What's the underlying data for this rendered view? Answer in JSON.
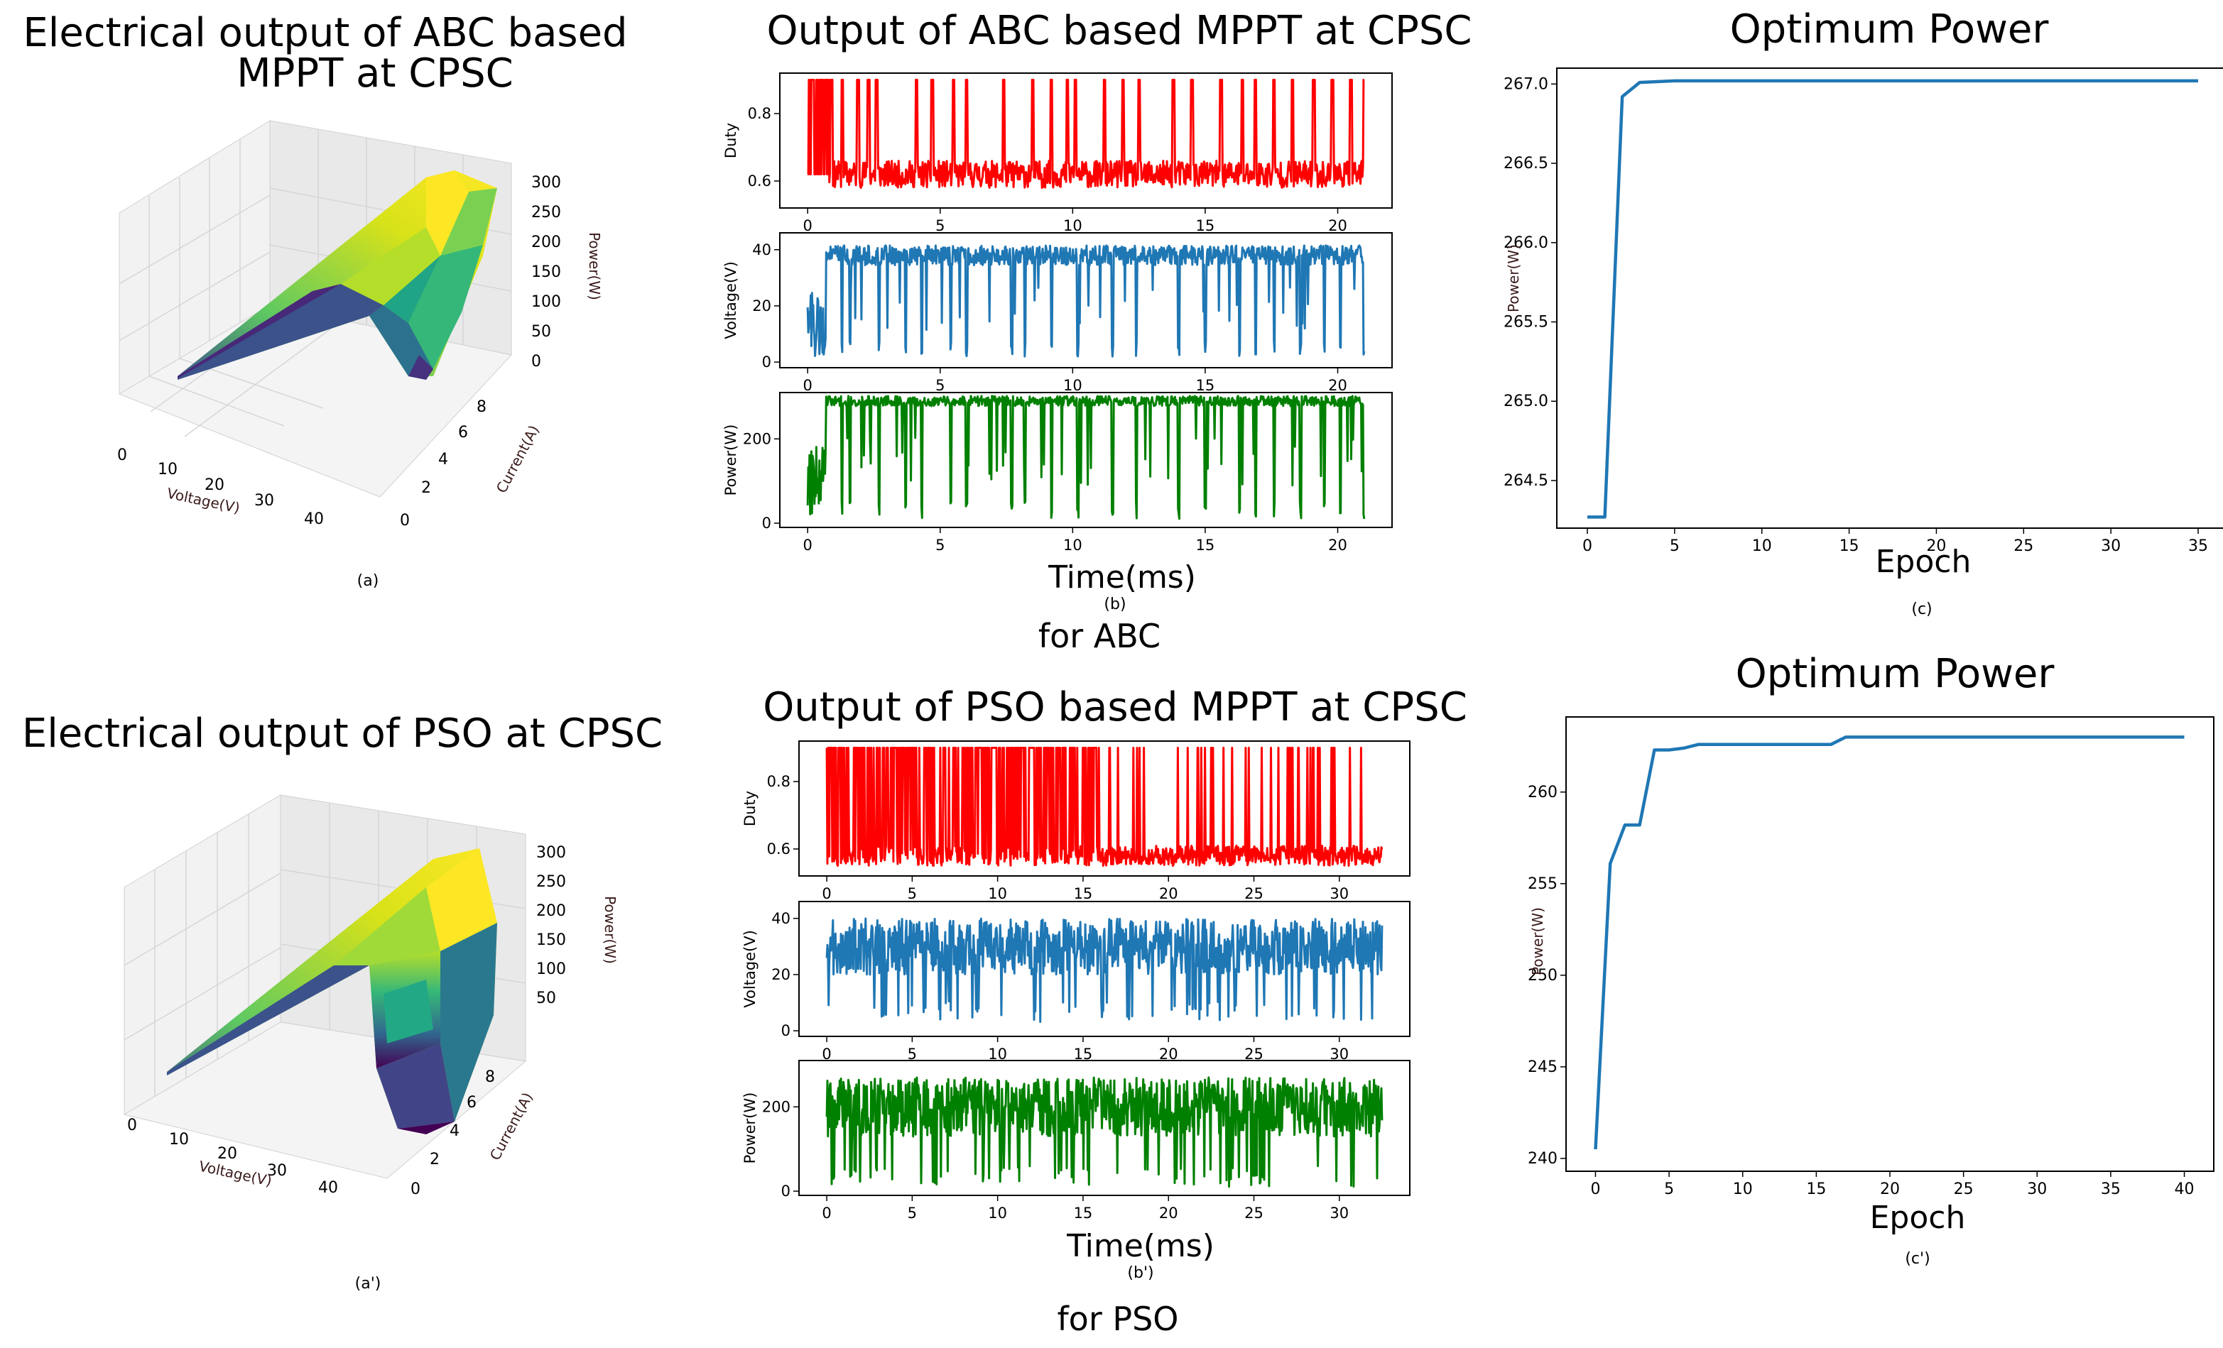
{
  "figure_labels": {
    "caption_a": "(a)",
    "caption_b": "(b)",
    "caption_c": "(c)",
    "caption_a2": "(a')",
    "caption_b2": "(b')",
    "caption_c2": "(c')",
    "group_abc": "for ABC",
    "group_pso": "for PSO"
  },
  "panel_a": {
    "title_line1": "Electrical output of ABC based",
    "title_line2": "MPPT at CPSC",
    "xlabel": "Voltage(V)",
    "ylabel": "Current(A)",
    "zlabel": "Power(W)",
    "xticks": [
      "0",
      "10",
      "20",
      "30",
      "40"
    ],
    "yticks": [
      "0",
      "2",
      "4",
      "6",
      "8"
    ],
    "zticks": [
      "0",
      "50",
      "100",
      "150",
      "200",
      "250",
      "300"
    ]
  },
  "panel_a2": {
    "title": "Electrical output of PSO at CPSC",
    "xlabel": "Voltage(V)",
    "ylabel": "Current(A)",
    "zlabel": "Power(W)",
    "xticks": [
      "0",
      "10",
      "20",
      "30",
      "40"
    ],
    "yticks": [
      "0",
      "2",
      "4",
      "6",
      "8"
    ],
    "zticks": [
      "50",
      "100",
      "150",
      "200",
      "250",
      "300"
    ]
  },
  "panel_b": {
    "title": "Output of ABC based MPPT at CPSC",
    "xlabel": "Time(ms)",
    "xticks": [
      "0",
      "5",
      "10",
      "15",
      "20"
    ],
    "subplots": [
      {
        "ylabel": "Duty",
        "yticks": [
          "0.6",
          "0.8"
        ]
      },
      {
        "ylabel": "Voltage(V)",
        "yticks": [
          "0",
          "20",
          "40"
        ]
      },
      {
        "ylabel": "Power(W)",
        "yticks": [
          "0",
          "200"
        ]
      }
    ]
  },
  "panel_b2": {
    "title": "Output of PSO based MPPT at CPSC",
    "xlabel": "Time(ms)",
    "xticks": [
      "0",
      "5",
      "10",
      "15",
      "20",
      "25",
      "30"
    ],
    "subplots": [
      {
        "ylabel": "Duty",
        "yticks": [
          "0.6",
          "0.8"
        ]
      },
      {
        "ylabel": "Voltage(V)",
        "yticks": [
          "0",
          "20",
          "40"
        ]
      },
      {
        "ylabel": "Power(W)",
        "yticks": [
          "0",
          "200"
        ]
      }
    ]
  },
  "panel_c": {
    "title": "Optimum Power",
    "xlabel": "Epoch",
    "ylabel": "Power(W)",
    "xticks": [
      "0",
      "5",
      "10",
      "15",
      "20",
      "25",
      "30",
      "35"
    ],
    "yticks": [
      "264.5",
      "265.0",
      "265.5",
      "266.0",
      "266.5",
      "267.0"
    ]
  },
  "panel_c2": {
    "title": "Optimum Power",
    "xlabel": "Epoch",
    "ylabel": "Power(W)",
    "xticks": [
      "0",
      "5",
      "10",
      "15",
      "20",
      "25",
      "30",
      "35",
      "40"
    ],
    "yticks": [
      "240",
      "245",
      "250",
      "255",
      "260"
    ]
  },
  "chart_data": [
    {
      "id": "a",
      "type": "surface3d",
      "title": "Electrical output of ABC based MPPT at CPSC",
      "xlabel": "Voltage(V)",
      "ylabel": "Current(A)",
      "zlabel": "Power(W)",
      "xlim": [
        0,
        45
      ],
      "ylim": [
        0,
        9
      ],
      "zlim": [
        0,
        300
      ],
      "peak_power": 300,
      "colormap": "viridis"
    },
    {
      "id": "a2",
      "type": "surface3d",
      "title": "Electrical output of PSO at CPSC",
      "xlabel": "Voltage(V)",
      "ylabel": "Current(A)",
      "zlabel": "Power(W)",
      "xlim": [
        0,
        45
      ],
      "ylim": [
        0,
        9
      ],
      "zlim": [
        0,
        300
      ],
      "peak_power": 300,
      "colormap": "viridis"
    },
    {
      "id": "b",
      "type": "line",
      "title": "Output of ABC based MPPT at CPSC",
      "xlabel": "Time(ms)",
      "xlim": [
        0,
        21
      ],
      "series": [
        {
          "name": "Duty",
          "ylabel": "Duty",
          "color": "#ff0000",
          "ylim": [
            0.52,
            0.92
          ],
          "base": 0.62,
          "noise": 0.04,
          "high": 0.9,
          "spikes": [
            0.0,
            0.2,
            0.4,
            0.9,
            1.3,
            1.9,
            2.3,
            2.6,
            4.1,
            4.7,
            5.5,
            6.0,
            7.4,
            8.5,
            9.2,
            9.8,
            10.1,
            11.2,
            11.9,
            12.5,
            13.8,
            14.5,
            15.6,
            16.4,
            16.9,
            17.6,
            18.3,
            19.1,
            19.8,
            20.5,
            21.0
          ]
        },
        {
          "name": "Voltage(V)",
          "ylabel": "Voltage(V)",
          "color": "#1f77b4",
          "ylim": [
            -2,
            46
          ],
          "base": 38,
          "noise": 3.5,
          "low": 2,
          "spikes": [
            0.1,
            0.3,
            1.3,
            1.6,
            2.7,
            3.7,
            4.3,
            5.4,
            6.0,
            7.7,
            8.2,
            9.2,
            10.2,
            11.5,
            12.4,
            14.0,
            15.0,
            16.3,
            16.9,
            17.6,
            18.6,
            19.5,
            20.1,
            21.0
          ]
        },
        {
          "name": "Power(W)",
          "ylabel": "Power(W)",
          "color": "#008000",
          "ylim": [
            -10,
            310
          ],
          "base": 290,
          "noise": 12,
          "low": 10,
          "spikes": [
            0.1,
            0.3,
            1.3,
            1.6,
            2.7,
            3.7,
            4.3,
            5.4,
            6.0,
            7.7,
            8.2,
            9.2,
            10.2,
            11.5,
            12.4,
            14.0,
            15.0,
            16.3,
            16.9,
            17.6,
            18.6,
            19.5,
            20.1,
            21.0
          ]
        }
      ]
    },
    {
      "id": "b2",
      "type": "line",
      "title": "Output of PSO based MPPT at CPSC",
      "xlabel": "Time(ms)",
      "xlim": [
        0,
        32.5
      ],
      "series": [
        {
          "name": "Duty",
          "ylabel": "Duty",
          "color": "#ff0000",
          "ylim": [
            0.52,
            0.92
          ],
          "base": 0.58,
          "noise": 0.03,
          "high": 0.9,
          "density": "heavy_then_sparse"
        },
        {
          "name": "Voltage(V)",
          "ylabel": "Voltage(V)",
          "color": "#1f77b4",
          "ylim": [
            -2,
            46
          ],
          "base": 30,
          "noise": 10,
          "low": 3
        },
        {
          "name": "Power(W)",
          "ylabel": "Power(W)",
          "color": "#008000",
          "ylim": [
            -10,
            310
          ],
          "base": 200,
          "noise": 70,
          "low": 10
        }
      ]
    },
    {
      "id": "c",
      "type": "line",
      "title": "Optimum Power",
      "xlabel": "Epoch",
      "ylabel": "Power(W)",
      "xlim": [
        -1.75,
        36.75
      ],
      "ylim": [
        264.2,
        267.1
      ],
      "x": [
        0,
        1,
        2,
        3,
        5,
        10,
        20,
        35
      ],
      "y": [
        264.27,
        264.27,
        266.92,
        267.01,
        267.02,
        267.02,
        267.02,
        267.02
      ]
    },
    {
      "id": "c2",
      "type": "line",
      "title": "Optimum Power",
      "xlabel": "Epoch",
      "ylabel": "Power(W)",
      "xlim": [
        -2,
        42
      ],
      "ylim": [
        239.3,
        264.1
      ],
      "x": [
        0,
        1,
        2,
        3,
        4,
        5,
        6,
        7,
        15,
        16,
        17,
        40
      ],
      "y": [
        240.5,
        256.1,
        258.2,
        258.2,
        262.3,
        262.3,
        262.4,
        262.6,
        262.6,
        262.6,
        263.0,
        263.0
      ]
    }
  ]
}
